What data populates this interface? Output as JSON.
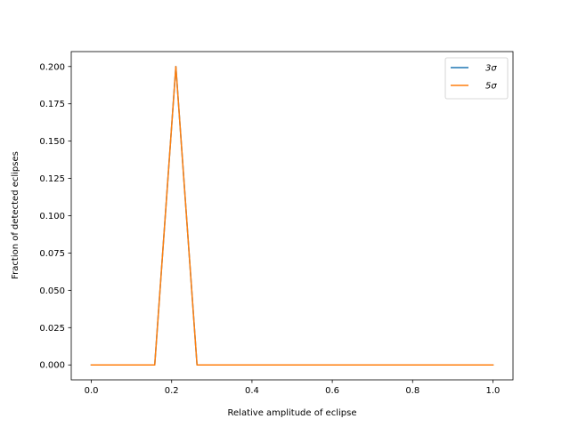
{
  "chart_data": {
    "type": "line",
    "title": "",
    "xlabel": "Relative amplitude of eclipse",
    "ylabel": "Fraction of detected eclipses",
    "xlim": [
      -0.05,
      1.05
    ],
    "ylim": [
      -0.01,
      0.21
    ],
    "xticks": [
      0.0,
      0.2,
      0.4,
      0.6,
      0.8,
      1.0
    ],
    "xtick_labels": [
      "0.0",
      "0.2",
      "0.4",
      "0.6",
      "0.8",
      "1.0"
    ],
    "yticks": [
      0.0,
      0.025,
      0.05,
      0.075,
      0.1,
      0.125,
      0.15,
      0.175,
      0.2
    ],
    "ytick_labels": [
      "0.000",
      "0.025",
      "0.050",
      "0.075",
      "0.100",
      "0.125",
      "0.150",
      "0.175",
      "0.200"
    ],
    "grid": false,
    "legend_position": "top-right",
    "x": [
      0.0,
      0.0526,
      0.1053,
      0.1579,
      0.2105,
      0.2632,
      0.3158,
      0.3684,
      0.4211,
      0.4737,
      0.5263,
      0.5789,
      0.6316,
      0.6842,
      0.7368,
      0.7895,
      0.8421,
      0.8947,
      0.9474,
      1.0
    ],
    "series": [
      {
        "name": "3σ",
        "color": "#1f77b4",
        "values": [
          0,
          0,
          0,
          0,
          0.2,
          0,
          0,
          0,
          0,
          0,
          0,
          0,
          0,
          0,
          0,
          0,
          0,
          0,
          0,
          0
        ]
      },
      {
        "name": "5σ",
        "color": "#ff7f0e",
        "values": [
          0,
          0,
          0,
          0,
          0.2,
          0,
          0,
          0,
          0,
          0,
          0,
          0,
          0,
          0,
          0,
          0,
          0,
          0,
          0,
          0
        ]
      }
    ]
  }
}
